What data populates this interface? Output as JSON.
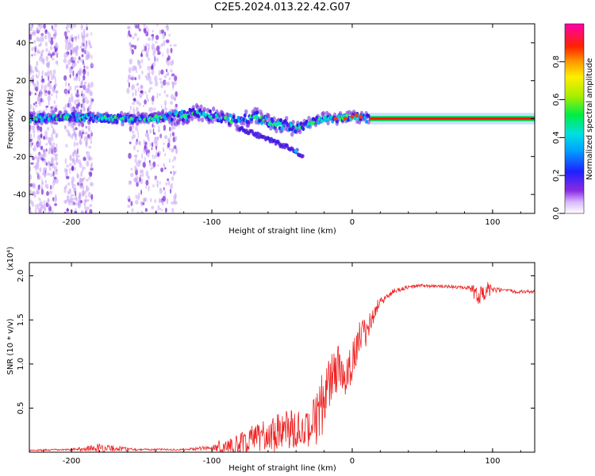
{
  "colors": {
    "snr_line": "#ee2222",
    "axis": "#000000",
    "background": "#ffffff"
  },
  "chart_data": [
    {
      "type": "heatmap",
      "title": "C2E5.2024.013.22.42.G07",
      "xlabel": "Height of straight line (km)",
      "ylabel": "Frequency (Hz)",
      "xlim": [
        -230,
        130
      ],
      "ylim": [
        -50,
        50
      ],
      "x_ticks": [
        -200,
        -100,
        0,
        100
      ],
      "x_tick_labels": [
        "-200",
        "-100",
        "0",
        "100"
      ],
      "y_ticks": [
        -40,
        -20,
        0,
        20,
        40
      ],
      "y_tick_labels": [
        "-40",
        "-20",
        "0",
        "20",
        "40"
      ],
      "colorbar": {
        "label": "Normalized spectral amplitude",
        "range": [
          0,
          1
        ],
        "ticks": [
          0,
          0.2,
          0.4,
          0.6,
          0.8
        ],
        "tick_labels": [
          "0.0",
          "0.2",
          "0.4",
          "0.6",
          "0.8"
        ]
      },
      "main_trace": [
        [
          -230,
          0
        ],
        [
          -200,
          1
        ],
        [
          -170,
          0
        ],
        [
          -150,
          0
        ],
        [
          -125,
          1
        ],
        [
          -110,
          3
        ],
        [
          -95,
          1
        ],
        [
          -80,
          -2
        ],
        [
          -70,
          2
        ],
        [
          -60,
          -2
        ],
        [
          -50,
          -3
        ],
        [
          -40,
          -5
        ],
        [
          -35,
          -4
        ],
        [
          -30,
          -2
        ],
        [
          -20,
          0
        ],
        [
          -10,
          0
        ],
        [
          0,
          1
        ],
        [
          5,
          1
        ],
        [
          10,
          0
        ],
        [
          20,
          0
        ],
        [
          60,
          0
        ],
        [
          100,
          0
        ],
        [
          130,
          0
        ]
      ],
      "secondary_trace": [
        [
          -80,
          -5
        ],
        [
          -70,
          -8
        ],
        [
          -60,
          -11
        ],
        [
          -50,
          -14
        ],
        [
          -40,
          -17
        ],
        [
          -35,
          -20
        ]
      ],
      "noise_bands": [
        [
          -230,
          -210
        ],
        [
          -205,
          -185
        ],
        [
          -160,
          -125
        ]
      ],
      "steady_line_start": 12
    },
    {
      "type": "line",
      "xlabel": "Height of straight line (km)",
      "ylabel": "SNR (10 * v/v)",
      "y_multiplier": "(x10⁴)",
      "xlim": [
        -230,
        130
      ],
      "ylim": [
        0,
        2.15
      ],
      "x_ticks": [
        -200,
        -100,
        0,
        100
      ],
      "x_tick_labels": [
        "-200",
        "-100",
        "0",
        "100"
      ],
      "y_ticks": [
        0.5,
        1.0,
        1.5,
        2.0
      ],
      "y_tick_labels": [
        "0.5",
        "1.0",
        "1.5",
        "2.0"
      ],
      "series": [
        {
          "name": "SNR",
          "x": [
            -230,
            -200,
            -180,
            -150,
            -120,
            -100,
            -80,
            -70,
            -60,
            -50,
            -40,
            -32,
            -28,
            -20,
            -15,
            -10,
            -5,
            0,
            5,
            10,
            15,
            20,
            30,
            40,
            50,
            60,
            70,
            80,
            85,
            90,
            95,
            100,
            110,
            120,
            130
          ],
          "y": [
            0.02,
            0.03,
            0.05,
            0.03,
            0.03,
            0.05,
            0.15,
            0.25,
            0.3,
            0.35,
            0.4,
            0.35,
            0.5,
            0.8,
            1.05,
            1.1,
            1.0,
            1.15,
            1.4,
            1.45,
            1.6,
            1.7,
            1.83,
            1.87,
            1.89,
            1.88,
            1.88,
            1.86,
            1.85,
            1.84,
            1.84,
            1.84,
            1.83,
            1.82,
            1.82
          ],
          "noise": [
            0.01,
            0.01,
            0.05,
            0.01,
            0.01,
            0.03,
            0.2,
            0.25,
            0.3,
            0.35,
            0.35,
            0.3,
            0.5,
            0.6,
            0.5,
            0.4,
            0.35,
            0.35,
            0.3,
            0.25,
            0.15,
            0.05,
            0.03,
            0.02,
            0.02,
            0.02,
            0.02,
            0.02,
            0.04,
            0.25,
            0.12,
            0.04,
            0.02,
            0.02,
            0.02
          ]
        }
      ]
    }
  ]
}
